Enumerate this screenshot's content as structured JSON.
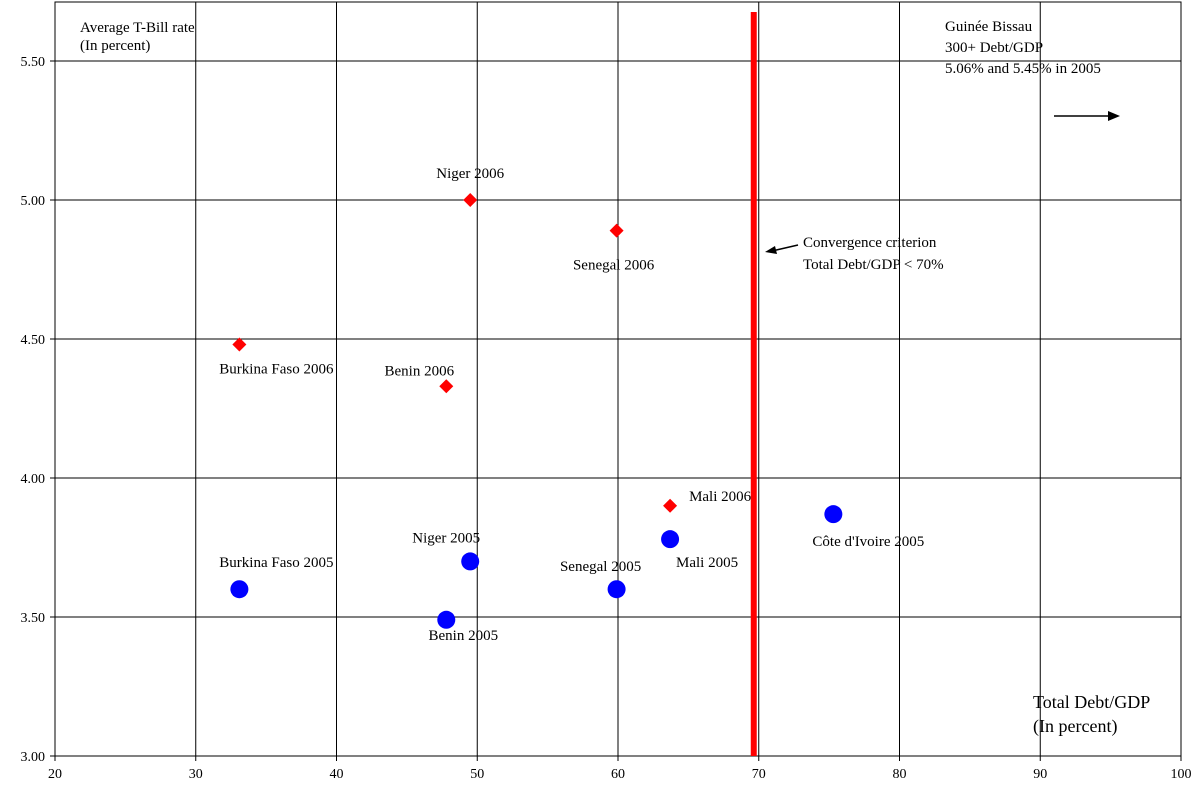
{
  "chart_data": {
    "type": "scatter",
    "xlim": [
      20,
      100
    ],
    "ylim": [
      3.0,
      5.75
    ],
    "x_ticks": [
      20,
      30,
      40,
      50,
      60,
      70,
      80,
      90,
      100
    ],
    "y_ticks": [
      3.0,
      3.5,
      4.0,
      4.5,
      5.0,
      5.5
    ],
    "x_tick_labels": [
      "20",
      "30",
      "40",
      "50",
      "60",
      "70",
      "80",
      "90",
      "100"
    ],
    "y_tick_labels": [
      "3.00",
      "3.50",
      "4.00",
      "4.50",
      "5.00",
      "5.50"
    ],
    "grid": true,
    "ylabel_lines": [
      "Average T-Bill rate",
      "(In percent)"
    ],
    "xlabel_lines": [
      "Total Debt/GDP",
      "(In percent)"
    ],
    "series": [
      {
        "marker": "diamond",
        "color": "#ff0000",
        "points": [
          {
            "x": 49.5,
            "y": 5.0,
            "label": "Niger 2006"
          },
          {
            "x": 59.9,
            "y": 4.89,
            "label": "Senegal 2006"
          },
          {
            "x": 33.1,
            "y": 4.48,
            "label": "Burkina Faso 2006"
          },
          {
            "x": 47.8,
            "y": 4.33,
            "label": "Benin 2006"
          },
          {
            "x": 63.7,
            "y": 3.9,
            "label": "Mali 2006"
          }
        ]
      },
      {
        "marker": "circle",
        "color": "#0000ff",
        "points": [
          {
            "x": 33.1,
            "y": 3.6,
            "label": "Burkina Faso 2005"
          },
          {
            "x": 49.5,
            "y": 3.7,
            "label": "Niger 2005"
          },
          {
            "x": 47.8,
            "y": 3.49,
            "label": "Benin 2005"
          },
          {
            "x": 59.9,
            "y": 3.6,
            "label": "Senegal 2005"
          },
          {
            "x": 63.7,
            "y": 3.78,
            "label": "Mali 2005"
          },
          {
            "x": 75.3,
            "y": 3.87,
            "label": "Côte d'Ivoire 2005"
          }
        ]
      }
    ],
    "reference_line": {
      "x": 70,
      "color": "#ff0000"
    },
    "annotations": {
      "convergence": [
        "Convergence criterion",
        "Total Debt/GDP < 70%"
      ],
      "guinee": [
        "Guinée Bissau",
        "300+ Debt/GDP",
        "5.06% and 5.45% in 2005"
      ]
    }
  }
}
